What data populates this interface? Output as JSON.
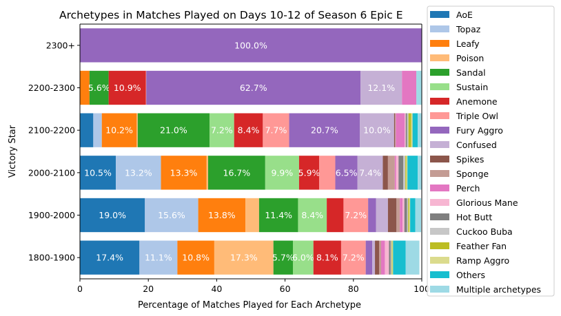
{
  "chart_data": {
    "type": "bar",
    "orientation": "horizontal",
    "stacked": true,
    "title": "Archetypes in Matches Played on Days 10-12 of Season 6 Epic E",
    "xlabel": "Percentage of Matches Played for Each Archetype",
    "ylabel": "Victory Star",
    "xlim": [
      0,
      100
    ],
    "xticks": [
      "0",
      "20",
      "40",
      "60",
      "80",
      "100"
    ],
    "grid": false,
    "legend_position": "right",
    "categories": [
      "2300+",
      "2200-2300",
      "2100-2200",
      "2000-2100",
      "1900-2000",
      "1800-1900"
    ],
    "series": [
      {
        "name": "AoE",
        "color": "#1f77b4",
        "values": [
          0,
          0,
          3.9,
          10.5,
          19.0,
          17.4
        ],
        "labels": [
          "",
          "",
          "",
          "10.5%",
          "19.0%",
          "17.4%"
        ]
      },
      {
        "name": "Topaz",
        "color": "#aec7e8",
        "values": [
          0,
          0,
          2.5,
          13.2,
          15.6,
          11.1
        ],
        "labels": [
          "",
          "",
          "",
          "13.2%",
          "15.6%",
          "11.1%"
        ]
      },
      {
        "name": "Leafy",
        "color": "#ff7f0e",
        "values": [
          0,
          2.8,
          10.2,
          13.3,
          13.8,
          10.8
        ],
        "labels": [
          "",
          "",
          "10.2%",
          "13.3%",
          "13.8%",
          "10.8%"
        ]
      },
      {
        "name": "Poison",
        "color": "#ffbb78",
        "values": [
          0,
          0,
          0.3,
          0.5,
          4.0,
          17.3
        ],
        "labels": [
          "",
          "",
          "",
          "",
          "",
          "17.3%"
        ]
      },
      {
        "name": "Sandal",
        "color": "#2ca02c",
        "values": [
          0,
          5.6,
          21.0,
          16.7,
          11.4,
          5.7
        ],
        "labels": [
          "",
          "5.6%",
          "21.0%",
          "16.7%",
          "11.4%",
          "5.7%"
        ]
      },
      {
        "name": "Sustain",
        "color": "#98df8a",
        "values": [
          0,
          0,
          7.2,
          9.9,
          8.4,
          6.0
        ],
        "labels": [
          "",
          "",
          "7.2%",
          "9.9%",
          "8.4%",
          "6.0%"
        ]
      },
      {
        "name": "Anemone",
        "color": "#d62728",
        "values": [
          0,
          10.9,
          8.4,
          5.9,
          4.9,
          8.1
        ],
        "labels": [
          "",
          "10.9%",
          "8.4%",
          "5.9%",
          "",
          "8.1%"
        ]
      },
      {
        "name": "Triple Owl",
        "color": "#ff9896",
        "values": [
          0,
          0.1,
          7.7,
          4.7,
          7.2,
          7.2
        ],
        "labels": [
          "",
          "",
          "7.7%",
          "",
          "7.2%",
          "7.2%"
        ]
      },
      {
        "name": "Fury Aggro",
        "color": "#9467bd",
        "values": [
          100.0,
          62.7,
          20.7,
          6.5,
          2.3,
          1.9
        ],
        "labels": [
          "100.0%",
          "62.7%",
          "20.7%",
          "6.5%",
          "",
          ""
        ]
      },
      {
        "name": "Confused",
        "color": "#c5b0d5",
        "values": [
          0,
          12.1,
          10.0,
          7.4,
          3.5,
          0.8
        ],
        "labels": [
          "",
          "12.1%",
          "10.0%",
          "7.4%",
          "",
          ""
        ]
      },
      {
        "name": "Spikes",
        "color": "#8c564b",
        "values": [
          0,
          0,
          0.3,
          1.5,
          2.5,
          1.2
        ],
        "labels": [
          "",
          "",
          "",
          "",
          "",
          ""
        ]
      },
      {
        "name": "Sponge",
        "color": "#c49c94",
        "values": [
          0,
          0,
          0.2,
          2.0,
          1.0,
          0.6
        ],
        "labels": [
          "",
          "",
          "",
          "",
          "",
          ""
        ]
      },
      {
        "name": "Perch",
        "color": "#e377c2",
        "values": [
          0,
          4.2,
          2.6,
          0.4,
          0.8,
          1.1
        ],
        "labels": [
          "",
          "",
          "",
          "",
          "",
          ""
        ]
      },
      {
        "name": "Glorious Mane",
        "color": "#f7b6d2",
        "values": [
          0,
          0,
          0.3,
          0.7,
          0.5,
          1.2
        ],
        "labels": [
          "",
          "",
          "",
          "",
          "",
          ""
        ]
      },
      {
        "name": "Hot Butt",
        "color": "#7f7f7f",
        "values": [
          0,
          0,
          0.4,
          1.4,
          0.8,
          0.5
        ],
        "labels": [
          "",
          "",
          "",
          "",
          "",
          ""
        ]
      },
      {
        "name": "Cuckoo Buba",
        "color": "#c7c7c7",
        "values": [
          0,
          0,
          0.4,
          0.6,
          0.3,
          0.3
        ],
        "labels": [
          "",
          "",
          "",
          "",
          "",
          ""
        ]
      },
      {
        "name": "Feather Fan",
        "color": "#bcbd22",
        "values": [
          0,
          0,
          0.8,
          0.3,
          0.3,
          0.2
        ],
        "labels": [
          "",
          "",
          "",
          "",
          "",
          ""
        ]
      },
      {
        "name": "Ramp Aggro",
        "color": "#dbdb8d",
        "values": [
          0,
          0,
          0.4,
          0.3,
          0.3,
          0.2
        ],
        "labels": [
          "",
          "",
          "",
          "",
          "",
          ""
        ]
      },
      {
        "name": "Others",
        "color": "#17becf",
        "values": [
          0,
          0,
          1.5,
          3.0,
          1.5,
          3.7
        ],
        "labels": [
          "",
          "",
          "",
          "",
          "",
          ""
        ]
      },
      {
        "name": "Multiple archetypes",
        "color": "#9edae5",
        "values": [
          0,
          1.6,
          1.3,
          1.5,
          1.7,
          4.0
        ],
        "labels": [
          "",
          "",
          "",
          "",
          "",
          ""
        ]
      }
    ]
  }
}
